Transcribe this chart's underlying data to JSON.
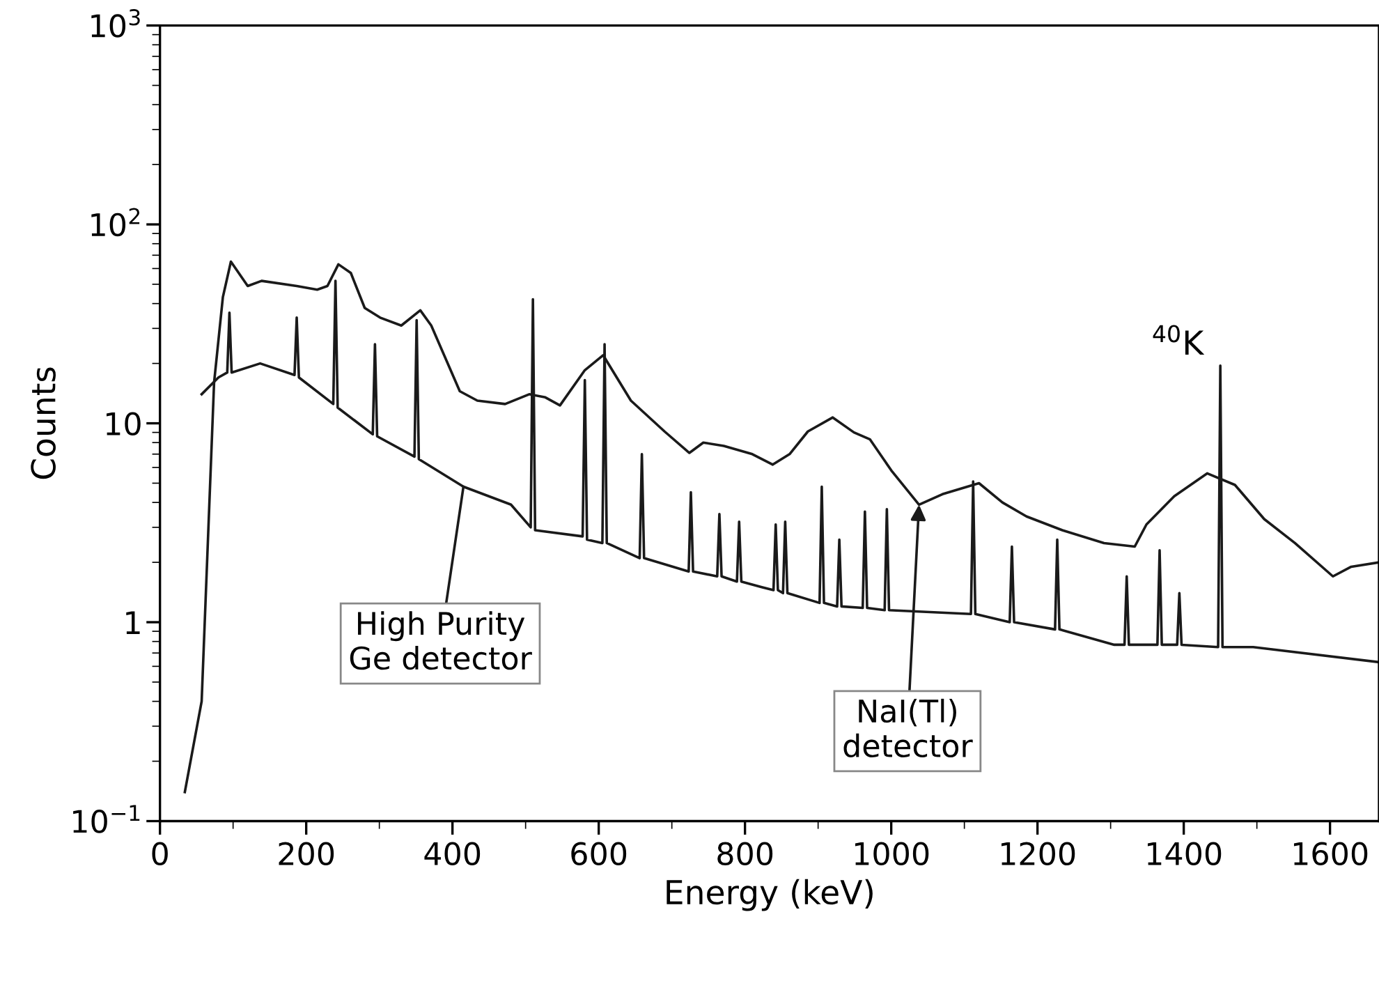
{
  "chart_data": {
    "type": "line",
    "xlabel": "Energy (keV)",
    "ylabel": "Counts",
    "log": "y",
    "marker": "none",
    "line_style": "solid",
    "xlim": [
      0,
      1667
    ],
    "xticks": [
      0,
      200,
      400,
      600,
      800,
      1000,
      1200,
      1400,
      1600
    ],
    "ylim": [
      0.1,
      1000
    ],
    "yticks": [
      {
        "value": 0.1,
        "label": "10$^{−1}$"
      },
      1,
      10,
      {
        "value": 100,
        "label": "10$^{2}$"
      },
      {
        "value": 1000,
        "label": "10$^{3}$"
      }
    ],
    "series": [
      {
        "color": "#1a1a1a",
        "x": [
          34,
          57,
          74,
          86,
          97,
          120,
          139,
          187,
          215,
          229,
          244,
          261,
          280,
          301,
          330,
          356,
          371,
          410,
          434,
          472,
          505,
          527,
          547,
          581,
          606,
          644,
          690,
          724,
          743,
          771,
          810,
          838,
          861,
          886,
          920,
          949,
          971,
          1000,
          1038,
          1070,
          1120,
          1152,
          1185,
          1234,
          1291,
          1333,
          1349,
          1387,
          1432,
          1470,
          1510,
          1552,
          1604,
          1629,
          1667
        ],
        "values": [
          0.14,
          0.4,
          16,
          43,
          65,
          49,
          52,
          49,
          47,
          49,
          63,
          57,
          38,
          34,
          31,
          37,
          31,
          14.5,
          13,
          12.5,
          14,
          13.5,
          12.3,
          18.5,
          22,
          13,
          9.1,
          7.1,
          8,
          7.7,
          7,
          6.2,
          7,
          9.1,
          10.7,
          9,
          8.3,
          5.8,
          3.9,
          4.4,
          5,
          4,
          3.4,
          2.9,
          2.5,
          2.4,
          3.1,
          4.3,
          5.6,
          4.9,
          3.3,
          2.5,
          1.7,
          1.9,
          2.0
        ]
      },
      {
        "color": "#1a1a1a",
        "x": [
          57,
          80,
          92,
          95,
          98,
          137,
          184,
          187,
          190,
          237,
          240,
          243,
          291,
          294,
          297,
          348,
          351,
          354,
          415,
          480,
          507,
          510,
          513,
          578,
          581,
          584,
          605,
          608,
          611,
          656,
          659,
          662,
          723,
          726,
          729,
          762,
          765,
          768,
          789,
          792,
          795,
          823,
          839,
          842,
          845,
          852,
          855,
          858,
          902,
          905,
          908,
          926,
          929,
          932,
          961,
          964,
          967,
          991,
          994,
          997,
          1109,
          1112,
          1115,
          1162,
          1165,
          1168,
          1224,
          1227,
          1230,
          1305,
          1319,
          1322,
          1325,
          1364,
          1367,
          1370,
          1391,
          1394,
          1397,
          1447,
          1450,
          1453,
          1495,
          1667
        ],
        "values": [
          14,
          17,
          18,
          36,
          18,
          20,
          17.5,
          34,
          17,
          12.5,
          52,
          12,
          8.8,
          25,
          8.6,
          6.8,
          33,
          6.6,
          4.8,
          3.9,
          3.0,
          42,
          2.9,
          2.7,
          16.5,
          2.6,
          2.5,
          25,
          2.5,
          2.1,
          7,
          2.1,
          1.8,
          4.5,
          1.8,
          1.7,
          3.5,
          1.7,
          1.6,
          3.2,
          1.6,
          1.5,
          1.45,
          3.1,
          1.45,
          1.4,
          3.2,
          1.4,
          1.25,
          4.8,
          1.25,
          1.2,
          2.6,
          1.2,
          1.18,
          3.6,
          1.18,
          1.15,
          3.7,
          1.15,
          1.1,
          5.1,
          1.1,
          1.0,
          2.4,
          1.0,
          0.92,
          2.6,
          0.92,
          0.77,
          0.77,
          1.7,
          0.77,
          0.77,
          2.3,
          0.77,
          0.77,
          1.4,
          0.77,
          0.75,
          19.5,
          0.75,
          0.75,
          0.63
        ]
      }
    ],
    "annotations": [
      {
        "text": "High Purity\nGe detector",
        "x": 415,
        "y": 4.8
      },
      {
        "text": "NaI(Tl)\ndetector",
        "x": 1038,
        "y": 3.9
      },
      {
        "text": "$^{40}$K",
        "x": 1450,
        "y": 19.5
      }
    ]
  }
}
